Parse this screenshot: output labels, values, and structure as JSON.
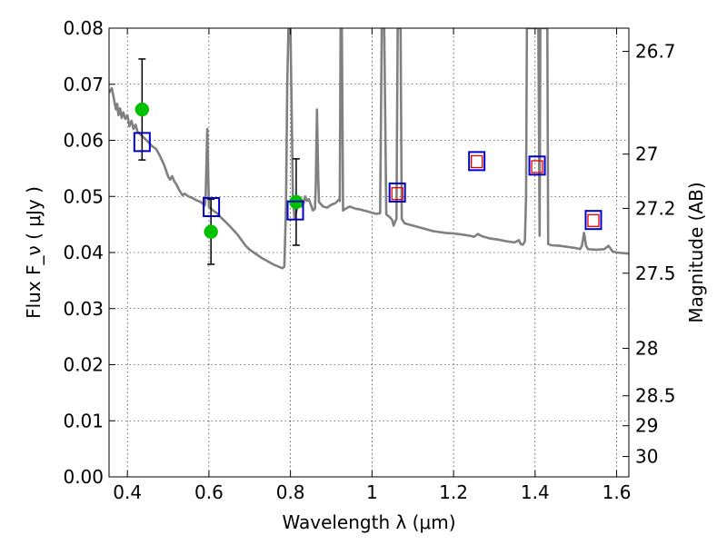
{
  "chart_data": {
    "type": "line",
    "title": "",
    "xlabel": "Wavelength  λ (μm)",
    "ylabel": "Flux  F_ν  ( μJy )",
    "y2label": "Magnitude (AB)",
    "xlim": [
      0.355,
      1.63
    ],
    "ylim": [
      0.0,
      0.08
    ],
    "grid": true,
    "x_ticks": [
      0.4,
      0.6,
      0.8,
      1.0,
      1.2,
      1.4,
      1.6
    ],
    "x_tick_labels": [
      "0.4",
      "0.6",
      "0.8",
      "1",
      "1.2",
      "1.4",
      "1.6"
    ],
    "y_ticks": [
      0.0,
      0.01,
      0.02,
      0.03,
      0.04,
      0.05,
      0.06,
      0.07,
      0.08
    ],
    "y_tick_labels": [
      "0.00",
      "0.01",
      "0.02",
      "0.03",
      "0.04",
      "0.05",
      "0.06",
      "0.07",
      "0.08"
    ],
    "y2_ticks": [
      {
        "label": "26.7",
        "mag": 26.7
      },
      {
        "label": "27",
        "mag": 27.0
      },
      {
        "label": "27.2",
        "mag": 27.2
      },
      {
        "label": "27.5",
        "mag": 27.5
      },
      {
        "label": "28",
        "mag": 28.0
      },
      {
        "label": "28.5",
        "mag": 28.5
      },
      {
        "label": "29",
        "mag": 29.0
      },
      {
        "label": "30",
        "mag": 30.0
      }
    ],
    "series": [
      {
        "style": "line",
        "color": "#808080",
        "points": [
          [
            0.355,
            0.0685
          ],
          [
            0.362,
            0.0693
          ],
          [
            0.368,
            0.067
          ],
          [
            0.372,
            0.0655
          ],
          [
            0.375,
            0.0665
          ],
          [
            0.378,
            0.0645
          ],
          [
            0.382,
            0.0657
          ],
          [
            0.386,
            0.064
          ],
          [
            0.39,
            0.065
          ],
          [
            0.395,
            0.0638
          ],
          [
            0.4,
            0.0645
          ],
          [
            0.405,
            0.0625
          ],
          [
            0.41,
            0.0635
          ],
          [
            0.415,
            0.062
          ],
          [
            0.42,
            0.0628
          ],
          [
            0.425,
            0.0615
          ],
          [
            0.43,
            0.0612
          ],
          [
            0.44,
            0.0605
          ],
          [
            0.45,
            0.0598
          ],
          [
            0.46,
            0.059
          ],
          [
            0.47,
            0.0585
          ],
          [
            0.48,
            0.0572
          ],
          [
            0.49,
            0.0556
          ],
          [
            0.5,
            0.0535
          ],
          [
            0.505,
            0.053
          ],
          [
            0.51,
            0.0536
          ],
          [
            0.515,
            0.0527
          ],
          [
            0.52,
            0.0522
          ],
          [
            0.525,
            0.0514
          ],
          [
            0.53,
            0.0508
          ],
          [
            0.535,
            0.0502
          ],
          [
            0.54,
            0.0505
          ],
          [
            0.55,
            0.05
          ],
          [
            0.56,
            0.0497
          ],
          [
            0.57,
            0.0493
          ],
          [
            0.58,
            0.049
          ],
          [
            0.585,
            0.0487
          ],
          [
            0.59,
            0.0484
          ],
          [
            0.592,
            0.05
          ],
          [
            0.594,
            0.056
          ],
          [
            0.596,
            0.062
          ],
          [
            0.598,
            0.055
          ],
          [
            0.6,
            0.0482
          ],
          [
            0.61,
            0.0475
          ],
          [
            0.62,
            0.047
          ],
          [
            0.63,
            0.0462
          ],
          [
            0.64,
            0.0455
          ],
          [
            0.65,
            0.0448
          ],
          [
            0.66,
            0.044
          ],
          [
            0.67,
            0.0432
          ],
          [
            0.68,
            0.0422
          ],
          [
            0.69,
            0.0412
          ],
          [
            0.7,
            0.0405
          ],
          [
            0.71,
            0.04
          ],
          [
            0.72,
            0.0395
          ],
          [
            0.73,
            0.039
          ],
          [
            0.74,
            0.0386
          ],
          [
            0.75,
            0.0382
          ],
          [
            0.76,
            0.0378
          ],
          [
            0.77,
            0.0375
          ],
          [
            0.78,
            0.0372
          ],
          [
            0.785,
            0.0375
          ],
          [
            0.789,
            0.048
          ],
          [
            0.792,
            0.07
          ],
          [
            0.795,
            0.08
          ],
          [
            0.8,
            0.08
          ],
          [
            0.803,
            0.065
          ],
          [
            0.806,
            0.05
          ],
          [
            0.81,
            0.046
          ],
          [
            0.815,
            0.0475
          ],
          [
            0.82,
            0.049
          ],
          [
            0.826,
            0.0482
          ],
          [
            0.832,
            0.0488
          ],
          [
            0.836,
            0.05
          ],
          [
            0.84,
            0.0492
          ],
          [
            0.845,
            0.0495
          ],
          [
            0.85,
            0.0485
          ],
          [
            0.855,
            0.0475
          ],
          [
            0.86,
            0.0478
          ],
          [
            0.862,
            0.052
          ],
          [
            0.865,
            0.0655
          ],
          [
            0.868,
            0.054
          ],
          [
            0.87,
            0.049
          ],
          [
            0.88,
            0.0482
          ],
          [
            0.89,
            0.048
          ],
          [
            0.9,
            0.0485
          ],
          [
            0.91,
            0.0488
          ],
          [
            0.918,
            0.0494
          ],
          [
            0.921,
            0.0492
          ],
          [
            0.923,
            0.08
          ],
          [
            0.926,
            0.08
          ],
          [
            0.929,
            0.0475
          ],
          [
            0.935,
            0.0478
          ],
          [
            0.945,
            0.0482
          ],
          [
            0.96,
            0.0478
          ],
          [
            0.97,
            0.0477
          ],
          [
            0.98,
            0.0475
          ],
          [
            0.99,
            0.0473
          ],
          [
            1.0,
            0.0471
          ],
          [
            1.01,
            0.0469
          ],
          [
            1.02,
            0.047
          ],
          [
            1.024,
            0.08
          ],
          [
            1.03,
            0.08
          ],
          [
            1.035,
            0.0468
          ],
          [
            1.045,
            0.0462
          ],
          [
            1.05,
            0.0457
          ],
          [
            1.053,
            0.0448
          ],
          [
            1.057,
            0.0455
          ],
          [
            1.06,
            0.046
          ],
          [
            1.063,
            0.08
          ],
          [
            1.067,
            0.08
          ],
          [
            1.07,
            0.08
          ],
          [
            1.073,
            0.046
          ],
          [
            1.08,
            0.0452
          ],
          [
            1.09,
            0.045
          ],
          [
            1.1,
            0.0448
          ],
          [
            1.12,
            0.0444
          ],
          [
            1.15,
            0.0438
          ],
          [
            1.18,
            0.0435
          ],
          [
            1.2,
            0.0434
          ],
          [
            1.22,
            0.0432
          ],
          [
            1.24,
            0.043
          ],
          [
            1.25,
            0.0428
          ],
          [
            1.26,
            0.0433
          ],
          [
            1.27,
            0.0429
          ],
          [
            1.29,
            0.0425
          ],
          [
            1.31,
            0.0423
          ],
          [
            1.33,
            0.042
          ],
          [
            1.35,
            0.0418
          ],
          [
            1.36,
            0.0422
          ],
          [
            1.365,
            0.0415
          ],
          [
            1.37,
            0.0414
          ],
          [
            1.375,
            0.042
          ],
          [
            1.378,
            0.05
          ],
          [
            1.38,
            0.08
          ],
          [
            1.385,
            0.08
          ],
          [
            1.39,
            0.08
          ],
          [
            1.4,
            0.08
          ],
          [
            1.408,
            0.08
          ],
          [
            1.411,
            0.043
          ],
          [
            1.413,
            0.08
          ],
          [
            1.43,
            0.08
          ],
          [
            1.432,
            0.0415
          ],
          [
            1.44,
            0.0413
          ],
          [
            1.46,
            0.0412
          ],
          [
            1.48,
            0.041
          ],
          [
            1.5,
            0.0408
          ],
          [
            1.51,
            0.0406
          ],
          [
            1.515,
            0.0412
          ],
          [
            1.52,
            0.0435
          ],
          [
            1.525,
            0.0412
          ],
          [
            1.53,
            0.0406
          ],
          [
            1.55,
            0.0405
          ],
          [
            1.57,
            0.0406
          ],
          [
            1.58,
            0.0412
          ],
          [
            1.59,
            0.0402
          ],
          [
            1.6,
            0.04
          ],
          [
            1.63,
            0.0398
          ]
        ]
      },
      {
        "style": "markers-circle",
        "color": "#00c000",
        "points": [
          {
            "x": 0.436,
            "y": 0.0655,
            "yerr_low": 0.0565,
            "yerr_high": 0.0745
          },
          {
            "x": 0.605,
            "y": 0.0437,
            "yerr_low": 0.0379,
            "yerr_high": 0.0495
          },
          {
            "x": 0.814,
            "y": 0.049,
            "yerr_low": 0.0413,
            "yerr_high": 0.0567
          }
        ]
      },
      {
        "style": "markers-square-open",
        "color": "#0000cc",
        "points": [
          {
            "x": 0.436,
            "y": 0.0597
          },
          {
            "x": 0.606,
            "y": 0.0481
          },
          {
            "x": 0.812,
            "y": 0.0475
          },
          {
            "x": 1.062,
            "y": 0.0507
          },
          {
            "x": 1.257,
            "y": 0.0563
          },
          {
            "x": 1.405,
            "y": 0.0555
          },
          {
            "x": 1.543,
            "y": 0.0458
          }
        ]
      },
      {
        "style": "markers-square-open-small",
        "color": "#e00000",
        "points": [
          {
            "x": 1.062,
            "y": 0.0505
          },
          {
            "x": 1.257,
            "y": 0.0562
          },
          {
            "x": 1.405,
            "y": 0.0553
          },
          {
            "x": 1.543,
            "y": 0.0457
          }
        ]
      }
    ]
  }
}
